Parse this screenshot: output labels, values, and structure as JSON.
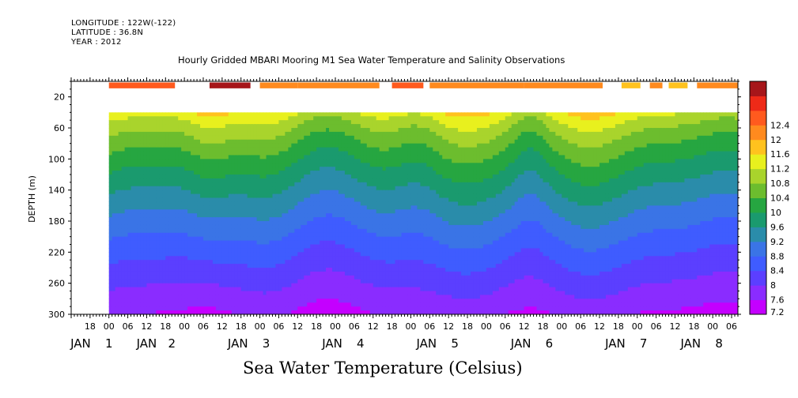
{
  "header": {
    "longitude": "LONGITUDE : 122W(-122)",
    "latitude": "LATITUDE : 36.8N",
    "year": "YEAR : 2012"
  },
  "title": "Hourly Gridded MBARI Mooring M1 Sea Water Temperature and Salinity Observations",
  "chart_data": {
    "type": "heatmap",
    "title": "Hourly Gridded MBARI Mooring M1 Sea Water Temperature and Salinity Observations",
    "colorbar_title": "Sea Water Temperature (Celsius)",
    "ylabel": "DEPTH (m)",
    "xlabel": "",
    "ylim": [
      300,
      0
    ],
    "y_ticks": [
      20,
      60,
      100,
      140,
      180,
      220,
      260,
      300
    ],
    "x_start_hour": 18,
    "x_end_hour": 200,
    "x_hour_ticks": [
      "18",
      "00",
      "06",
      "12",
      "18",
      "00",
      "06",
      "12",
      "18",
      "00",
      "06",
      "12",
      "18",
      "00",
      "06",
      "12",
      "18",
      "00",
      "06",
      "12",
      "18",
      "00",
      "06",
      "12",
      "18",
      "00",
      "06",
      "12",
      "18",
      "00",
      "06",
      "12",
      "18",
      "00",
      "06",
      "12"
    ],
    "day_labels": [
      {
        "text": "JAN",
        "hour": 15
      },
      {
        "text": "1",
        "hour": 24
      },
      {
        "text": "JAN",
        "hour": 36
      },
      {
        "text": "2",
        "hour": 44
      },
      {
        "text": "JAN",
        "hour": 65
      },
      {
        "text": "3",
        "hour": 74
      },
      {
        "text": "JAN",
        "hour": 95
      },
      {
        "text": "4",
        "hour": 104
      },
      {
        "text": "JAN",
        "hour": 125
      },
      {
        "text": "5",
        "hour": 134
      },
      {
        "text": "JAN",
        "hour": 155
      },
      {
        "text": "6",
        "hour": 164
      },
      {
        "text": "JAN",
        "hour": 185
      },
      {
        "text": "7",
        "hour": 194
      },
      {
        "text": "JAN",
        "hour": 209
      },
      {
        "text": "8",
        "hour": 218
      }
    ],
    "colorbar": {
      "levels": [
        7.2,
        7.6,
        8,
        8.4,
        8.8,
        9.2,
        9.6,
        10,
        10.4,
        10.8,
        11.2,
        11.6,
        12,
        12.4
      ],
      "colors": [
        "#c400ff",
        "#8a2cff",
        "#5b3fff",
        "#3f5cff",
        "#3a74e6",
        "#2a8caa",
        "#1a9a6e",
        "#26a641",
        "#6cbd2e",
        "#a9d42c",
        "#e8f01e",
        "#ffc21e",
        "#ff8a1e",
        "#ff5a1e",
        "#ee2a18",
        "#a6161a"
      ]
    },
    "surface_band": {
      "depth": 10,
      "segments": [
        {
          "start": 24,
          "end": 45,
          "level": 12.0
        },
        {
          "start": 56,
          "end": 69,
          "level": 12.6
        },
        {
          "start": 72,
          "end": 84,
          "level": 11.8
        },
        {
          "start": 84,
          "end": 110,
          "level": 11.8
        },
        {
          "start": 114,
          "end": 124,
          "level": 12.2
        },
        {
          "start": 126,
          "end": 156,
          "level": 11.8
        },
        {
          "start": 156,
          "end": 156,
          "level": 11.8
        },
        {
          "start": 156,
          "end": 181,
          "level": 11.8
        },
        {
          "start": 187,
          "end": 193,
          "level": 11.4
        },
        {
          "start": 196,
          "end": 200,
          "level": 11.6
        },
        {
          "start": 202,
          "end": 208,
          "level": 11.4
        },
        {
          "start": 211,
          "end": 224,
          "level": 11.6
        }
      ]
    }
  }
}
